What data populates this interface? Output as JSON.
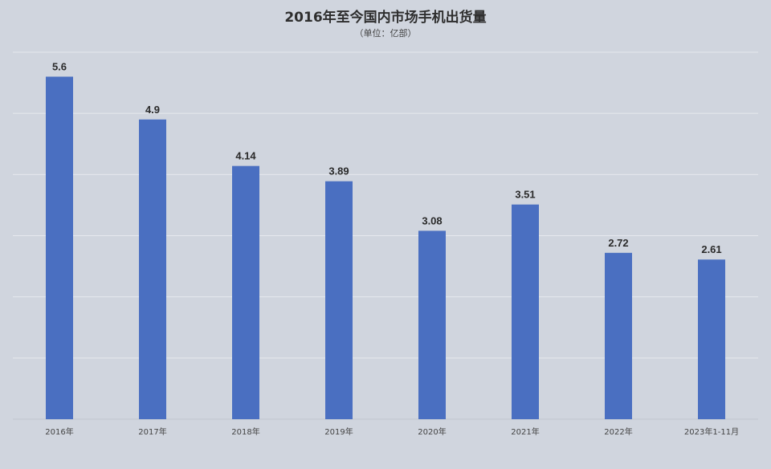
{
  "chart_data": {
    "type": "bar",
    "title": "2016年至今国内市场手机出货量",
    "subtitle": "（单位：亿部）",
    "categories": [
      "2016年",
      "2017年",
      "2018年",
      "2019年",
      "2020年",
      "2021年",
      "2022年",
      "2023年1-11月"
    ],
    "values": [
      5.6,
      4.9,
      4.14,
      3.89,
      3.08,
      3.51,
      2.72,
      2.61
    ],
    "ylim": [
      0,
      6
    ],
    "grid": true,
    "legend": "none",
    "bar_color": "#4a6fc1",
    "background": "#d0d5de"
  }
}
